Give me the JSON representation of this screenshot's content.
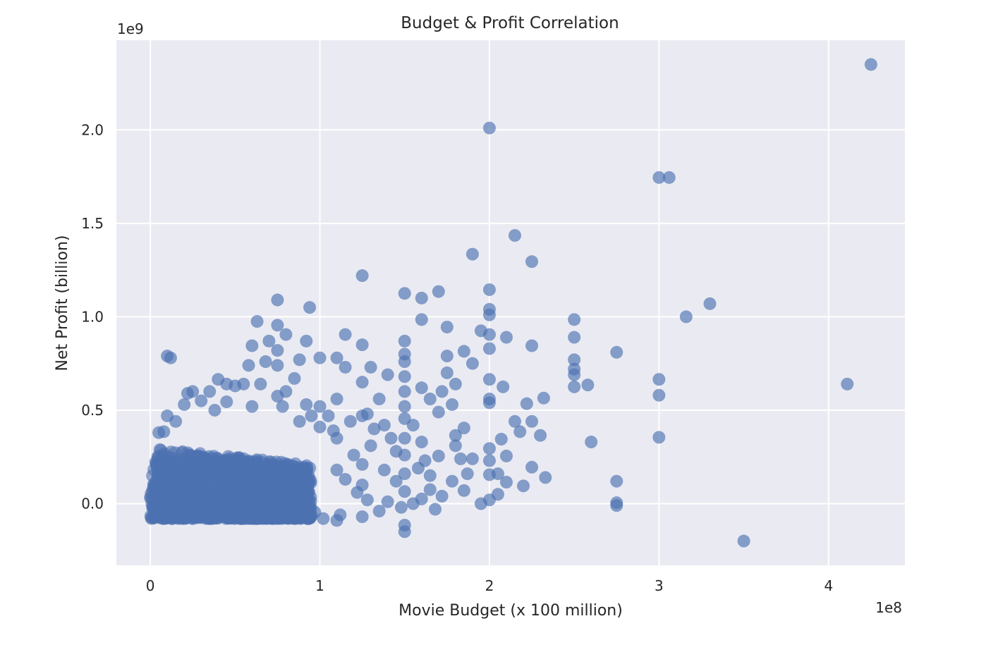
{
  "chart_data": {
    "type": "scatter",
    "title": "Budget & Profit Correlation",
    "xlabel": "Movie Budget (x 100 million)",
    "ylabel": "Net Profit (billion)",
    "x_offset_text": "1e8",
    "y_offset_text": "1e9",
    "xlim": [
      -20000000,
      445000000
    ],
    "ylim": [
      -330000000,
      2480000000
    ],
    "xticks": [
      0,
      100000000,
      200000000,
      300000000,
      400000000
    ],
    "xtick_labels": [
      "0",
      "1",
      "2",
      "3",
      "4"
    ],
    "yticks": [
      0,
      500000000,
      1000000000,
      1500000000,
      2000000000
    ],
    "ytick_labels": [
      "0.0",
      "0.5",
      "1.0",
      "1.5",
      "2.0"
    ],
    "grid": true,
    "point_color": "#4c72b0",
    "background_color": "#eaeaf2",
    "points": [
      [
        425000000,
        2350000000
      ],
      [
        200000000,
        2010000000
      ],
      [
        300000000,
        1745000000
      ],
      [
        306000000,
        1745000000
      ],
      [
        215000000,
        1435000000
      ],
      [
        190000000,
        1335000000
      ],
      [
        225000000,
        1295000000
      ],
      [
        125000000,
        1220000000
      ],
      [
        150000000,
        1125000000
      ],
      [
        160000000,
        1100000000
      ],
      [
        170000000,
        1135000000
      ],
      [
        200000000,
        1145000000
      ],
      [
        330000000,
        1070000000
      ],
      [
        316000000,
        1000000000
      ],
      [
        200000000,
        1040000000
      ],
      [
        200000000,
        1010000000
      ],
      [
        75000000,
        1090000000
      ],
      [
        94000000,
        1050000000
      ],
      [
        63000000,
        975000000
      ],
      [
        75000000,
        955000000
      ],
      [
        160000000,
        985000000
      ],
      [
        175000000,
        945000000
      ],
      [
        195000000,
        925000000
      ],
      [
        200000000,
        905000000
      ],
      [
        210000000,
        890000000
      ],
      [
        225000000,
        845000000
      ],
      [
        250000000,
        985000000
      ],
      [
        250000000,
        890000000
      ],
      [
        275000000,
        810000000
      ],
      [
        250000000,
        770000000
      ],
      [
        250000000,
        720000000
      ],
      [
        250000000,
        690000000
      ],
      [
        250000000,
        625000000
      ],
      [
        258000000,
        635000000
      ],
      [
        300000000,
        665000000
      ],
      [
        300000000,
        580000000
      ],
      [
        300000000,
        355000000
      ],
      [
        260000000,
        330000000
      ],
      [
        275000000,
        120000000
      ],
      [
        275000000,
        5000000
      ],
      [
        275000000,
        -10000000
      ],
      [
        350000000,
        -200000000
      ],
      [
        411000000,
        640000000
      ],
      [
        232000000,
        565000000
      ],
      [
        222000000,
        535000000
      ],
      [
        225000000,
        440000000
      ],
      [
        215000000,
        440000000
      ],
      [
        218000000,
        385000000
      ],
      [
        230000000,
        365000000
      ],
      [
        225000000,
        195000000
      ],
      [
        233000000,
        140000000
      ],
      [
        220000000,
        95000000
      ],
      [
        210000000,
        255000000
      ],
      [
        207000000,
        345000000
      ],
      [
        200000000,
        295000000
      ],
      [
        200000000,
        230000000
      ],
      [
        200000000,
        155000000
      ],
      [
        200000000,
        20000000
      ],
      [
        195000000,
        0
      ],
      [
        210000000,
        115000000
      ],
      [
        185000000,
        815000000
      ],
      [
        190000000,
        750000000
      ],
      [
        200000000,
        665000000
      ],
      [
        200000000,
        560000000
      ],
      [
        200000000,
        540000000
      ],
      [
        208000000,
        625000000
      ],
      [
        200000000,
        830000000
      ],
      [
        185000000,
        405000000
      ],
      [
        180000000,
        365000000
      ],
      [
        180000000,
        640000000
      ],
      [
        175000000,
        700000000
      ],
      [
        175000000,
        790000000
      ],
      [
        170000000,
        490000000
      ],
      [
        170000000,
        255000000
      ],
      [
        165000000,
        150000000
      ],
      [
        165000000,
        75000000
      ],
      [
        160000000,
        620000000
      ],
      [
        160000000,
        330000000
      ],
      [
        160000000,
        25000000
      ],
      [
        158000000,
        190000000
      ],
      [
        150000000,
        870000000
      ],
      [
        150000000,
        800000000
      ],
      [
        150000000,
        760000000
      ],
      [
        150000000,
        680000000
      ],
      [
        150000000,
        600000000
      ],
      [
        150000000,
        520000000
      ],
      [
        150000000,
        455000000
      ],
      [
        150000000,
        350000000
      ],
      [
        150000000,
        260000000
      ],
      [
        150000000,
        160000000
      ],
      [
        150000000,
        65000000
      ],
      [
        150000000,
        -115000000
      ],
      [
        150000000,
        -150000000
      ],
      [
        145000000,
        280000000
      ],
      [
        140000000,
        690000000
      ],
      [
        138000000,
        420000000
      ],
      [
        135000000,
        560000000
      ],
      [
        130000000,
        730000000
      ],
      [
        130000000,
        310000000
      ],
      [
        125000000,
        850000000
      ],
      [
        125000000,
        650000000
      ],
      [
        125000000,
        470000000
      ],
      [
        125000000,
        210000000
      ],
      [
        125000000,
        100000000
      ],
      [
        125000000,
        -70000000
      ],
      [
        120000000,
        260000000
      ],
      [
        115000000,
        905000000
      ],
      [
        115000000,
        730000000
      ],
      [
        110000000,
        780000000
      ],
      [
        110000000,
        560000000
      ],
      [
        110000000,
        350000000
      ],
      [
        110000000,
        180000000
      ],
      [
        110000000,
        -90000000
      ],
      [
        105000000,
        470000000
      ],
      [
        102000000,
        -80000000
      ],
      [
        100000000,
        780000000
      ],
      [
        100000000,
        520000000
      ],
      [
        100000000,
        410000000
      ],
      [
        97000000,
        -45000000
      ],
      [
        92000000,
        870000000
      ],
      [
        92000000,
        530000000
      ],
      [
        88000000,
        770000000
      ],
      [
        85000000,
        670000000
      ],
      [
        80000000,
        600000000
      ],
      [
        80000000,
        905000000
      ],
      [
        75000000,
        820000000
      ],
      [
        75000000,
        740000000
      ],
      [
        75000000,
        575000000
      ],
      [
        70000000,
        870000000
      ],
      [
        68000000,
        760000000
      ],
      [
        60000000,
        845000000
      ],
      [
        58000000,
        740000000
      ],
      [
        55000000,
        640000000
      ],
      [
        50000000,
        630000000
      ],
      [
        45000000,
        640000000
      ],
      [
        40000000,
        665000000
      ],
      [
        35000000,
        600000000
      ],
      [
        30000000,
        550000000
      ],
      [
        25000000,
        600000000
      ],
      [
        20000000,
        530000000
      ],
      [
        12000000,
        780000000
      ],
      [
        10000000,
        790000000
      ],
      [
        8000000,
        385000000
      ],
      [
        5000000,
        380000000
      ],
      [
        10000000,
        470000000
      ],
      [
        15000000,
        440000000
      ],
      [
        22000000,
        590000000
      ],
      [
        65000000,
        640000000
      ],
      [
        45000000,
        545000000
      ],
      [
        38000000,
        500000000
      ],
      [
        60000000,
        520000000
      ],
      [
        78000000,
        520000000
      ],
      [
        88000000,
        440000000
      ],
      [
        95000000,
        470000000
      ],
      [
        108000000,
        390000000
      ],
      [
        118000000,
        440000000
      ],
      [
        128000000,
        480000000
      ],
      [
        132000000,
        400000000
      ],
      [
        142000000,
        350000000
      ],
      [
        155000000,
        420000000
      ],
      [
        165000000,
        560000000
      ],
      [
        172000000,
        600000000
      ],
      [
        178000000,
        530000000
      ],
      [
        183000000,
        240000000
      ],
      [
        187000000,
        160000000
      ],
      [
        178000000,
        120000000
      ],
      [
        172000000,
        40000000
      ],
      [
        168000000,
        -30000000
      ],
      [
        155000000,
        0
      ],
      [
        145000000,
        120000000
      ],
      [
        138000000,
        180000000
      ],
      [
        135000000,
        -40000000
      ],
      [
        128000000,
        20000000
      ],
      [
        122000000,
        60000000
      ],
      [
        115000000,
        130000000
      ],
      [
        112000000,
        -60000000
      ],
      [
        140000000,
        10000000
      ],
      [
        148000000,
        -20000000
      ],
      [
        162000000,
        230000000
      ],
      [
        190000000,
        240000000
      ],
      [
        185000000,
        70000000
      ],
      [
        205000000,
        50000000
      ],
      [
        180000000,
        310000000
      ],
      [
        205000000,
        160000000
      ]
    ],
    "dense_cluster": {
      "x_range": [
        0,
        95000000
      ],
      "y_range": [
        -80000000,
        300000000
      ]
    }
  }
}
